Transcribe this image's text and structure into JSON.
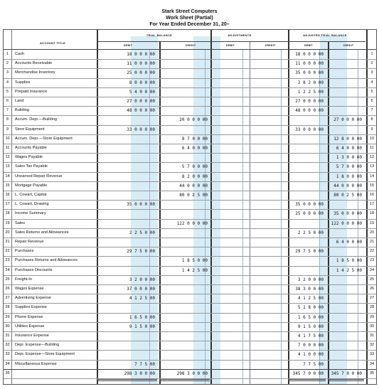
{
  "header": {
    "company": "Stark Street Computers",
    "title": "Work Sheet (Partial)",
    "period": "For Year Ended December 31, 20–"
  },
  "columns": {
    "account_title": "ACCOUNT TITLE",
    "trial_balance": "TRIAL BALANCE",
    "adjustments": "ADJUSTMENTS",
    "adjusted_trial_balance": "ADJUSTED TRIAL BALANCE",
    "debit": "DEBIT",
    "credit": "CREDIT"
  },
  "rows": [
    {
      "n": "1",
      "account": "Cash",
      "tb_dr": "18 0 0 0 00",
      "tb_cr": "",
      "adj_dr": "",
      "adj_cr": "",
      "atb_dr": "18 0 0 0 00",
      "atb_cr": ""
    },
    {
      "n": "2",
      "account": "Accounts Receivable",
      "tb_dr": "11 0 0 0 00",
      "tb_cr": "",
      "adj_dr": "",
      "adj_cr": "",
      "atb_dr": "11 0 0 0 00",
      "atb_cr": ""
    },
    {
      "n": "3",
      "account": "Merchandise Inventory",
      "tb_dr": "25 0 0 0 00",
      "tb_cr": "",
      "adj_dr": "",
      "adj_cr": "",
      "atb_dr": "35 0 0 0 00",
      "atb_cr": ""
    },
    {
      "n": "4",
      "account": "Supplies",
      "tb_dr": "8 0 0 0 00",
      "tb_cr": "",
      "adj_dr": "",
      "adj_cr": "",
      "atb_dr": "2 8 2 0 00",
      "atb_cr": ""
    },
    {
      "n": "5",
      "account": "Prepaid Insurance",
      "tb_dr": "5 4 0 0 00",
      "tb_cr": "",
      "adj_dr": "",
      "adj_cr": "",
      "atb_dr": "1 2 2 5 00",
      "atb_cr": ""
    },
    {
      "n": "6",
      "account": "Land",
      "tb_dr": "27 0 0 0 00",
      "tb_cr": "",
      "adj_dr": "",
      "adj_cr": "",
      "atb_dr": "27 0 0 0 00",
      "atb_cr": ""
    },
    {
      "n": "7",
      "account": "Building",
      "tb_dr": "48 0 0 0 00",
      "tb_cr": "",
      "adj_dr": "",
      "adj_cr": "",
      "atb_dr": "48 0 0 0 00",
      "atb_cr": ""
    },
    {
      "n": "8",
      "account": "Accum. Depr.—Building",
      "tb_dr": "",
      "tb_cr": "20 0 0 0 00",
      "adj_dr": "",
      "adj_cr": "",
      "atb_dr": "",
      "atb_cr": "27 0 0 0 00"
    },
    {
      "n": "9",
      "account": "Store Equipment",
      "tb_dr": "33 0 0 0 00",
      "tb_cr": "",
      "adj_dr": "",
      "adj_cr": "",
      "atb_dr": "33 0 0 0 00",
      "atb_cr": ""
    },
    {
      "n": "10",
      "account": "Accum. Depr.—Store Equipment",
      "tb_dr": "",
      "tb_cr": "8 7 0 0 00",
      "adj_dr": "",
      "adj_cr": "",
      "atb_dr": "",
      "atb_cr": "12 8 0 0 00"
    },
    {
      "n": "11",
      "account": "Accounts Payable",
      "tb_dr": "",
      "tb_cr": "6 4 0 0 00",
      "adj_dr": "",
      "adj_cr": "",
      "atb_dr": "",
      "atb_cr": "6 4 0 0 00"
    },
    {
      "n": "12",
      "account": "Wages Payable",
      "tb_dr": "",
      "tb_cr": "",
      "adj_dr": "",
      "adj_cr": "",
      "atb_dr": "",
      "atb_cr": "1 3 0 0 00"
    },
    {
      "n": "13",
      "account": "Sales Tax Payable",
      "tb_dr": "",
      "tb_cr": "5 7 0 0 00",
      "adj_dr": "",
      "adj_cr": "",
      "atb_dr": "",
      "atb_cr": "5 7 0 0 00"
    },
    {
      "n": "14",
      "account": "Unearned Repair Revenue",
      "tb_dr": "",
      "tb_cr": "8 2 0 0 00",
      "adj_dr": "",
      "adj_cr": "",
      "atb_dr": "",
      "atb_cr": "1 8 0 0 00"
    },
    {
      "n": "15",
      "account": "Mortgage Payable",
      "tb_dr": "",
      "tb_cr": "44 0 0 0 00",
      "adj_dr": "",
      "adj_cr": "",
      "atb_dr": "",
      "atb_cr": "44 0 0 0 00"
    },
    {
      "n": "16",
      "account": "L. Cowart, Capital",
      "tb_dr": "",
      "tb_cr": "80 0 2 5 00",
      "adj_dr": "",
      "adj_cr": "",
      "atb_dr": "",
      "atb_cr": "80 0 2 5 00"
    },
    {
      "n": "17",
      "account": "L. Cowart, Drawing",
      "tb_dr": "35 0 0 0 00",
      "tb_cr": "",
      "adj_dr": "",
      "adj_cr": "",
      "atb_dr": "35 0 0 0 00",
      "atb_cr": ""
    },
    {
      "n": "18",
      "account": "Income Summary",
      "tb_dr": "",
      "tb_cr": "",
      "adj_dr": "",
      "adj_cr": "",
      "atb_dr": "25 0 0 0 00",
      "atb_cr": "35 0 0 0 00"
    },
    {
      "n": "19",
      "account": "Sales",
      "tb_dr": "",
      "tb_cr": "122 0 0 0 00",
      "adj_dr": "",
      "adj_cr": "",
      "atb_dr": "",
      "atb_cr": "122 0 0 0 00"
    },
    {
      "n": "20",
      "account": "Sales Returns and Allowances",
      "tb_dr": "2 2 5 0 00",
      "tb_cr": "",
      "adj_dr": "",
      "adj_cr": "",
      "atb_dr": "2 2 5 0 00",
      "atb_cr": ""
    },
    {
      "n": "21",
      "account": "Repair Revenue",
      "tb_dr": "",
      "tb_cr": "",
      "adj_dr": "",
      "adj_cr": "",
      "atb_dr": "",
      "atb_cr": "6 4 0 0 00"
    },
    {
      "n": "22",
      "account": "Purchases",
      "tb_dr": "29 7 5 0 00",
      "tb_cr": "",
      "adj_dr": "",
      "adj_cr": "",
      "atb_dr": "29 7 5 0 00",
      "atb_cr": ""
    },
    {
      "n": "23",
      "account": "Purchases Returns and Allowances",
      "tb_dr": "",
      "tb_cr": "1 8 5 0 00",
      "adj_dr": "",
      "adj_cr": "",
      "atb_dr": "",
      "atb_cr": "1 8 5 0 00"
    },
    {
      "n": "24",
      "account": "Purchases Discounts",
      "tb_dr": "",
      "tb_cr": "1 4 2 5 00",
      "adj_dr": "",
      "adj_cr": "",
      "atb_dr": "",
      "atb_cr": "1 4 2 5 00"
    },
    {
      "n": "25",
      "account": "Freight-In",
      "tb_dr": "3 2 0 0 00",
      "tb_cr": "",
      "adj_dr": "",
      "adj_cr": "",
      "atb_dr": "3 2 0 0 00",
      "atb_cr": ""
    },
    {
      "n": "26",
      "account": "Wages Expense",
      "tb_dr": "37 0 0 0 00",
      "tb_cr": "",
      "adj_dr": "",
      "adj_cr": "",
      "atb_dr": "38 3 0 0 00",
      "atb_cr": ""
    },
    {
      "n": "27",
      "account": "Advertising Expense",
      "tb_dr": "4 1 2 5 00",
      "tb_cr": "",
      "adj_dr": "",
      "adj_cr": "",
      "atb_dr": "4 1 2 5 00",
      "atb_cr": ""
    },
    {
      "n": "28",
      "account": "Supplies Expense",
      "tb_dr": "",
      "tb_cr": "",
      "adj_dr": "",
      "adj_cr": "",
      "atb_dr": "5 1 8 0 00",
      "atb_cr": ""
    },
    {
      "n": "29",
      "account": "Phone Expense",
      "tb_dr": "1 6 5 0 00",
      "tb_cr": "",
      "adj_dr": "",
      "adj_cr": "",
      "atb_dr": "1 6 5 0 00",
      "atb_cr": ""
    },
    {
      "n": "30",
      "account": "Utilities Expense",
      "tb_dr": "9 1 5 0 00",
      "tb_cr": "",
      "adj_dr": "",
      "adj_cr": "",
      "atb_dr": "9 1 5 0 00",
      "atb_cr": ""
    },
    {
      "n": "31",
      "account": "Insurance Expense",
      "tb_dr": "",
      "tb_cr": "",
      "adj_dr": "",
      "adj_cr": "",
      "atb_dr": "4 1 7 5 00",
      "atb_cr": ""
    },
    {
      "n": "32",
      "account": "Depr. Expense—Building",
      "tb_dr": "",
      "tb_cr": "",
      "adj_dr": "",
      "adj_cr": "",
      "atb_dr": "7 0 0 0 00",
      "atb_cr": ""
    },
    {
      "n": "33",
      "account": "Depr. Expense—Store Equipment",
      "tb_dr": "",
      "tb_cr": "",
      "adj_dr": "",
      "adj_cr": "",
      "atb_dr": "4 1 0 0 00",
      "atb_cr": ""
    },
    {
      "n": "34",
      "account": "Miscellaneous Expense",
      "tb_dr": "7 7 5 00",
      "tb_cr": "",
      "adj_dr": "",
      "adj_cr": "",
      "atb_dr": "7 7 5 00",
      "atb_cr": ""
    },
    {
      "n": "35",
      "account": "",
      "tb_dr": "298 3 0 0 00",
      "tb_cr": "298 3 0 0 00",
      "adj_dr": "",
      "adj_cr": "",
      "atb_dr": "345 7 0 0 00",
      "atb_cr": "345 7 0 0 00"
    }
  ],
  "colors": {
    "shade": "#d7ecf6",
    "grid": "#777777"
  }
}
